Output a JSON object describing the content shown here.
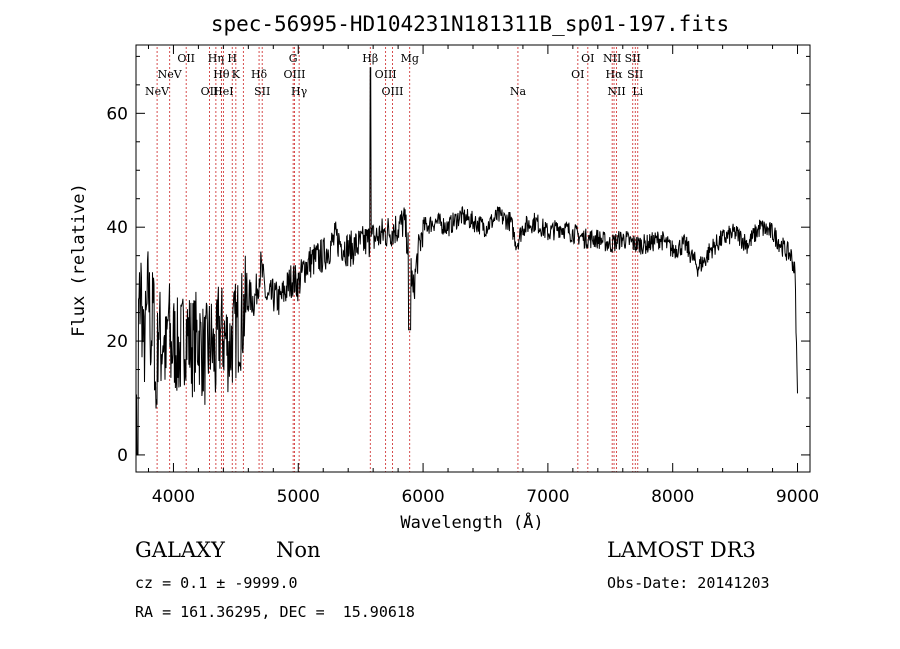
{
  "chart_data": {
    "type": "line",
    "title": "spec-56995-HD104231N181311B_sp01-197.fits",
    "xlabel": "Wavelength (Å)",
    "ylabel": "Flux (relative)",
    "xlim": [
      3700,
      9100
    ],
    "ylim": [
      -3,
      72
    ],
    "xticks": [
      4000,
      5000,
      6000,
      7000,
      8000,
      9000
    ],
    "yticks": [
      0,
      20,
      40,
      60
    ],
    "grid": false,
    "series": [
      {
        "name": "spectrum",
        "x": [
          3700,
          3720,
          3740,
          3760,
          3780,
          3800,
          3820,
          3840,
          3860,
          3880,
          3900,
          3920,
          3940,
          3960,
          3980,
          4000,
          4050,
          4100,
          4150,
          4200,
          4250,
          4300,
          4340,
          4360,
          4400,
          4450,
          4500,
          4550,
          4600,
          4650,
          4700,
          4750,
          4800,
          4850,
          4900,
          4950,
          5000,
          5050,
          5100,
          5200,
          5300,
          5400,
          5500,
          5600,
          5700,
          5800,
          5850,
          5900,
          5920,
          5950,
          6000,
          6100,
          6200,
          6300,
          6400,
          6500,
          6600,
          6700,
          6750,
          6800,
          6900,
          7000,
          7100,
          7200,
          7300,
          7400,
          7500,
          7600,
          7700,
          7800,
          7900,
          8000,
          8100,
          8200,
          8250,
          8300,
          8400,
          8500,
          8600,
          8700,
          8800,
          8900,
          8950,
          8980,
          9000
        ],
        "y": [
          12,
          24,
          30,
          18,
          22,
          30,
          20,
          27,
          8,
          24,
          19,
          21,
          16,
          25,
          18,
          20,
          18,
          22,
          19,
          21,
          17,
          20,
          16,
          22,
          21,
          19,
          22,
          24,
          28,
          27,
          33,
          27,
          28,
          27,
          29,
          31,
          30,
          33,
          34,
          35,
          38,
          36,
          37,
          38,
          39,
          40,
          41,
          34,
          28,
          34,
          40,
          41,
          40,
          42,
          41,
          40,
          42,
          41,
          37,
          40,
          41,
          39,
          40,
          39,
          38,
          38,
          37,
          38,
          37,
          37,
          38,
          36,
          37,
          33,
          34,
          36,
          38,
          39,
          37,
          40,
          39,
          36,
          35,
          32,
          10
        ]
      }
    ],
    "line_markers": [
      {
        "wavelength": 3869,
        "label": "NeV",
        "row": 2
      },
      {
        "wavelength": 3970,
        "label": "NeV",
        "row": 1
      },
      {
        "wavelength": 4102,
        "label": "OII",
        "row": 0
      },
      {
        "wavelength": 4289,
        "label": "OII",
        "row": 2
      },
      {
        "wavelength": 4340,
        "label": "Hη",
        "row": 0
      },
      {
        "wavelength": 4384,
        "label": "Hθ",
        "row": 1
      },
      {
        "wavelength": 4400,
        "label": "HeI",
        "row": 2
      },
      {
        "wavelength": 4471,
        "label": "H",
        "row": 0
      },
      {
        "wavelength": 4500,
        "label": "K",
        "row": 1
      },
      {
        "wavelength": 4560,
        "label": "",
        "row": -1
      },
      {
        "wavelength": 4686,
        "label": "Hδ",
        "row": 1
      },
      {
        "wavelength": 4711,
        "label": "SII",
        "row": 2
      },
      {
        "wavelength": 4959,
        "label": "G",
        "row": 0
      },
      {
        "wavelength": 4970,
        "label": "OIII",
        "row": 1
      },
      {
        "wavelength": 5007,
        "label": "Hγ",
        "row": 2
      },
      {
        "wavelength": 5577,
        "label": "Hβ",
        "row": 0
      },
      {
        "wavelength": 5700,
        "label": "OIII",
        "row": 1
      },
      {
        "wavelength": 5755,
        "label": "OIII",
        "row": 2
      },
      {
        "wavelength": 5893,
        "label": "Mg",
        "row": 0
      },
      {
        "wavelength": 6760,
        "label": "Na",
        "row": 2
      },
      {
        "wavelength": 7240,
        "label": "OI",
        "row": 1
      },
      {
        "wavelength": 7320,
        "label": "OI",
        "row": 0
      },
      {
        "wavelength": 7515,
        "label": "NII",
        "row": 0
      },
      {
        "wavelength": 7530,
        "label": "Hα",
        "row": 1
      },
      {
        "wavelength": 7550,
        "label": "NII",
        "row": 2
      },
      {
        "wavelength": 7680,
        "label": "SII",
        "row": 0
      },
      {
        "wavelength": 7700,
        "label": "SII",
        "row": 1
      },
      {
        "wavelength": 7720,
        "label": "Li",
        "row": 2
      }
    ]
  },
  "info": {
    "class": "GALAXY",
    "subclass": "Non",
    "survey": "LAMOST DR3",
    "cz_line": "cz = 0.1 ± -9999.0",
    "obs_date": "Obs-Date: 20141203",
    "coords": "RA = 161.36295, DEC =  15.90618"
  },
  "colors": {
    "spectrum": "#000000",
    "marker": "#cc2222",
    "axis": "#000000"
  }
}
